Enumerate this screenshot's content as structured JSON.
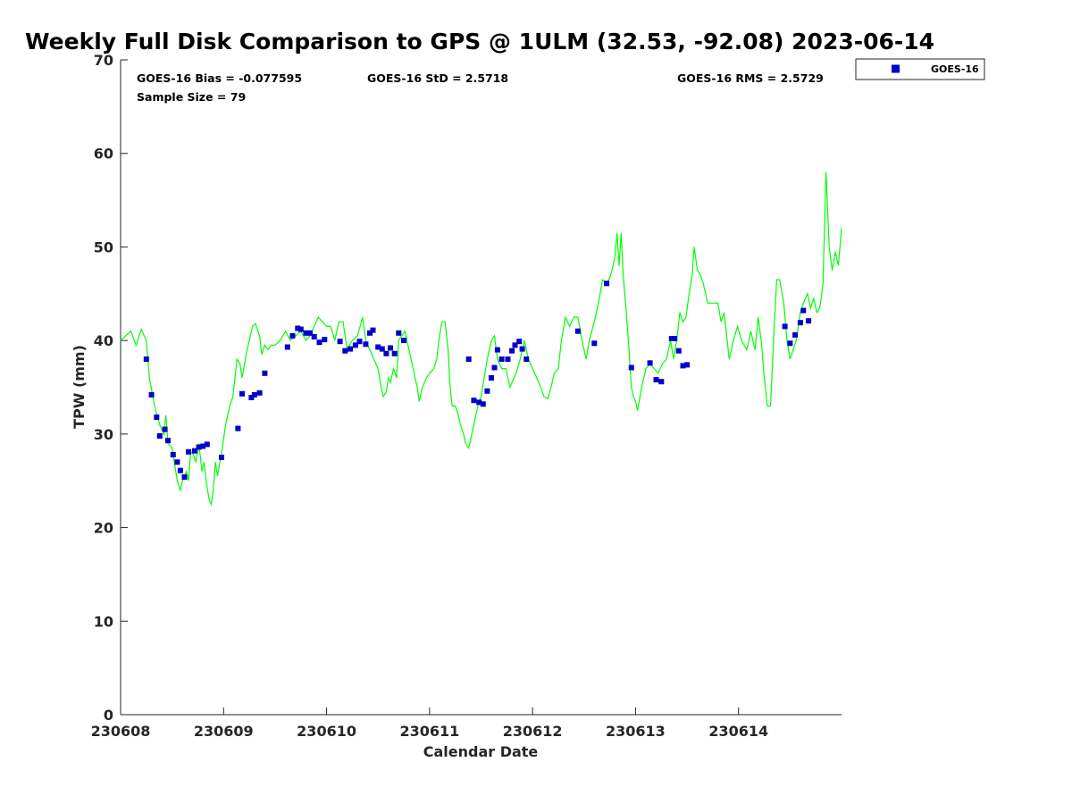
{
  "chart_data": {
    "type": "scatter",
    "title": "Weekly Full Disk Comparison to GPS @ 1ULM (32.53, -92.08) 2023-06-14",
    "xlabel": "Calendar Date",
    "ylabel": "TPW (mm)",
    "xlim": [
      0,
      7
    ],
    "ylim": [
      0,
      70
    ],
    "x_ticks": [
      0,
      1,
      2,
      3,
      4,
      5,
      6
    ],
    "x_tick_labels": [
      "230608",
      "230609",
      "230610",
      "230611",
      "230612",
      "230613",
      "230614"
    ],
    "y_ticks": [
      0,
      10,
      20,
      30,
      40,
      50,
      60,
      70
    ],
    "y_tick_labels": [
      "0",
      "10",
      "20",
      "30",
      "40",
      "50",
      "60",
      "70"
    ],
    "legend": {
      "position": "top-right",
      "entries": [
        "GOES-16"
      ]
    },
    "stats": {
      "bias": "GOES-16 Bias = -0.077595",
      "std": "GOES-16 StD = 2.5718",
      "rms": "GOES-16 RMS = 2.5729",
      "sample": "Sample Size = 79"
    },
    "series": [
      {
        "name": "GPS",
        "kind": "line",
        "color": "#00ff00",
        "points": [
          [
            0,
            40
          ],
          [
            0.1,
            41
          ],
          [
            0.15,
            39.5
          ],
          [
            0.2,
            41.2
          ],
          [
            0.25,
            40
          ],
          [
            0.28,
            36
          ],
          [
            0.33,
            33
          ],
          [
            0.38,
            31
          ],
          [
            0.42,
            30
          ],
          [
            0.44,
            32
          ],
          [
            0.46,
            29
          ],
          [
            0.5,
            28.5
          ],
          [
            0.55,
            25
          ],
          [
            0.58,
            24
          ],
          [
            0.6,
            25
          ],
          [
            0.64,
            26
          ],
          [
            0.66,
            25
          ],
          [
            0.68,
            28
          ],
          [
            0.7,
            28
          ],
          [
            0.73,
            27
          ],
          [
            0.76,
            29
          ],
          [
            0.79,
            26
          ],
          [
            0.81,
            27
          ],
          [
            0.83,
            25
          ],
          [
            0.86,
            23
          ],
          [
            0.88,
            22.5
          ],
          [
            0.9,
            24
          ],
          [
            0.92,
            27
          ],
          [
            0.94,
            25.5
          ],
          [
            0.98,
            28
          ],
          [
            1.02,
            31
          ],
          [
            1.06,
            33
          ],
          [
            1.09,
            34
          ],
          [
            1.11,
            36
          ],
          [
            1.13,
            38
          ],
          [
            1.16,
            37.5
          ],
          [
            1.18,
            36
          ],
          [
            1.22,
            38.5
          ],
          [
            1.25,
            40
          ],
          [
            1.28,
            41.5
          ],
          [
            1.31,
            41.8
          ],
          [
            1.35,
            40.5
          ],
          [
            1.37,
            38.5
          ],
          [
            1.4,
            39.5
          ],
          [
            1.43,
            39
          ],
          [
            1.46,
            39.5
          ],
          [
            1.5,
            39.5
          ],
          [
            1.55,
            40
          ],
          [
            1.6,
            41
          ],
          [
            1.65,
            40
          ],
          [
            1.7,
            40.5
          ],
          [
            1.75,
            41
          ],
          [
            1.8,
            40
          ],
          [
            1.84,
            40.5
          ],
          [
            1.88,
            41.5
          ],
          [
            1.92,
            42.5
          ],
          [
            1.96,
            42
          ],
          [
            2.0,
            41.5
          ],
          [
            2.04,
            41.5
          ],
          [
            2.08,
            40
          ],
          [
            2.12,
            42
          ],
          [
            2.16,
            42
          ],
          [
            2.2,
            39
          ],
          [
            2.25,
            40
          ],
          [
            2.3,
            40.5
          ],
          [
            2.35,
            42.5
          ],
          [
            2.38,
            40
          ],
          [
            2.42,
            39
          ],
          [
            2.46,
            38
          ],
          [
            2.5,
            37
          ],
          [
            2.53,
            35
          ],
          [
            2.55,
            34
          ],
          [
            2.58,
            34.5
          ],
          [
            2.6,
            36
          ],
          [
            2.62,
            35.5
          ],
          [
            2.65,
            37
          ],
          [
            2.68,
            36
          ],
          [
            2.7,
            40
          ],
          [
            2.73,
            40.5
          ],
          [
            2.76,
            41
          ],
          [
            2.8,
            39
          ],
          [
            2.84,
            37
          ],
          [
            2.88,
            35
          ],
          [
            2.9,
            33.5
          ],
          [
            2.93,
            35
          ],
          [
            2.97,
            36
          ],
          [
            3.0,
            36.5
          ],
          [
            3.04,
            37
          ],
          [
            3.07,
            38
          ],
          [
            3.09,
            40
          ],
          [
            3.12,
            42
          ],
          [
            3.15,
            42
          ],
          [
            3.18,
            39
          ],
          [
            3.2,
            35
          ],
          [
            3.22,
            33
          ],
          [
            3.25,
            33
          ],
          [
            3.28,
            32
          ],
          [
            3.3,
            31
          ],
          [
            3.33,
            30
          ],
          [
            3.35,
            29
          ],
          [
            3.38,
            28.5
          ],
          [
            3.41,
            30
          ],
          [
            3.44,
            31.5
          ],
          [
            3.47,
            33
          ],
          [
            3.5,
            34
          ],
          [
            3.53,
            36
          ],
          [
            3.56,
            38
          ],
          [
            3.6,
            40
          ],
          [
            3.63,
            40.5
          ],
          [
            3.66,
            38
          ],
          [
            3.7,
            37
          ],
          [
            3.74,
            37
          ],
          [
            3.78,
            35
          ],
          [
            3.8,
            35.5
          ],
          [
            3.84,
            36.5
          ],
          [
            3.88,
            38
          ],
          [
            3.92,
            40
          ],
          [
            3.96,
            38
          ],
          [
            4.0,
            37
          ],
          [
            4.04,
            36
          ],
          [
            4.08,
            35
          ],
          [
            4.11,
            34
          ],
          [
            4.15,
            33.8
          ],
          [
            4.18,
            35
          ],
          [
            4.21,
            36.5
          ],
          [
            4.25,
            37
          ],
          [
            4.28,
            40
          ],
          [
            4.32,
            42.5
          ],
          [
            4.36,
            41.5
          ],
          [
            4.4,
            42.5
          ],
          [
            4.44,
            42.5
          ],
          [
            4.48,
            40
          ],
          [
            4.52,
            38
          ],
          [
            4.55,
            40
          ],
          [
            4.6,
            42
          ],
          [
            4.64,
            44
          ],
          [
            4.68,
            46.5
          ],
          [
            4.72,
            46
          ],
          [
            4.76,
            47
          ],
          [
            4.8,
            49
          ],
          [
            4.82,
            51.5
          ],
          [
            4.84,
            48
          ],
          [
            4.86,
            51.5
          ],
          [
            4.88,
            47
          ],
          [
            4.91,
            43
          ],
          [
            4.93,
            40
          ],
          [
            4.96,
            35
          ],
          [
            4.98,
            34
          ],
          [
            5.0,
            33.5
          ],
          [
            5.02,
            32.5
          ],
          [
            5.06,
            35
          ],
          [
            5.1,
            37
          ],
          [
            5.14,
            37.5
          ],
          [
            5.18,
            37
          ],
          [
            5.22,
            36.5
          ],
          [
            5.26,
            37.5
          ],
          [
            5.3,
            38
          ],
          [
            5.34,
            40
          ],
          [
            5.37,
            38
          ],
          [
            5.4,
            40
          ],
          [
            5.43,
            43
          ],
          [
            5.46,
            42
          ],
          [
            5.49,
            42.5
          ],
          [
            5.52,
            45
          ],
          [
            5.55,
            47
          ],
          [
            5.57,
            50
          ],
          [
            5.6,
            47.5
          ],
          [
            5.63,
            47
          ],
          [
            5.66,
            46
          ],
          [
            5.7,
            44
          ],
          [
            5.75,
            44
          ],
          [
            5.8,
            44
          ],
          [
            5.83,
            42
          ],
          [
            5.86,
            43
          ],
          [
            5.88,
            41
          ],
          [
            5.91,
            38
          ],
          [
            5.95,
            40
          ],
          [
            5.99,
            41.5
          ],
          [
            6.03,
            40
          ],
          [
            6.08,
            39
          ],
          [
            6.12,
            41
          ],
          [
            6.16,
            39
          ],
          [
            6.19,
            42.5
          ],
          [
            6.22,
            40
          ],
          [
            6.25,
            36
          ],
          [
            6.28,
            33
          ],
          [
            6.31,
            33
          ],
          [
            6.34,
            40
          ],
          [
            6.37,
            46.5
          ],
          [
            6.4,
            46.5
          ],
          [
            6.44,
            44
          ],
          [
            6.47,
            40
          ],
          [
            6.5,
            38
          ],
          [
            6.53,
            39
          ],
          [
            6.56,
            40
          ],
          [
            6.6,
            43
          ],
          [
            6.63,
            44
          ],
          [
            6.67,
            45
          ],
          [
            6.7,
            43.5
          ],
          [
            6.73,
            44.5
          ],
          [
            6.76,
            43
          ],
          [
            6.79,
            43.5
          ],
          [
            6.82,
            46
          ],
          [
            6.85,
            58
          ],
          [
            6.88,
            50
          ],
          [
            6.91,
            47.5
          ],
          [
            6.94,
            49.5
          ],
          [
            6.97,
            48
          ],
          [
            7.0,
            52
          ]
        ]
      },
      {
        "name": "GOES-16",
        "kind": "scatter",
        "color": "#0000cc",
        "points": [
          [
            0.25,
            38
          ],
          [
            0.3,
            34.2
          ],
          [
            0.35,
            31.8
          ],
          [
            0.38,
            29.8
          ],
          [
            0.43,
            30.5
          ],
          [
            0.46,
            29.3
          ],
          [
            0.51,
            27.8
          ],
          [
            0.55,
            27
          ],
          [
            0.58,
            26.1
          ],
          [
            0.62,
            25.4
          ],
          [
            0.66,
            28.1
          ],
          [
            0.72,
            28.2
          ],
          [
            0.76,
            28.6
          ],
          [
            0.8,
            28.7
          ],
          [
            0.84,
            28.9
          ],
          [
            0.98,
            27.5
          ],
          [
            1.14,
            30.6
          ],
          [
            1.18,
            34.3
          ],
          [
            1.27,
            33.9
          ],
          [
            1.3,
            34.2
          ],
          [
            1.35,
            34.4
          ],
          [
            1.4,
            36.5
          ],
          [
            1.62,
            39.3
          ],
          [
            1.67,
            40.5
          ],
          [
            1.72,
            41.3
          ],
          [
            1.75,
            41.2
          ],
          [
            1.8,
            40.8
          ],
          [
            1.84,
            40.8
          ],
          [
            1.88,
            40.4
          ],
          [
            1.93,
            39.8
          ],
          [
            1.98,
            40.1
          ],
          [
            2.13,
            39.9
          ],
          [
            2.18,
            38.9
          ],
          [
            2.23,
            39.1
          ],
          [
            2.28,
            39.5
          ],
          [
            2.32,
            39.9
          ],
          [
            2.38,
            39.6
          ],
          [
            2.42,
            40.8
          ],
          [
            2.45,
            41.1
          ],
          [
            2.5,
            39.3
          ],
          [
            2.54,
            39.1
          ],
          [
            2.58,
            38.6
          ],
          [
            2.62,
            39.2
          ],
          [
            2.66,
            38.6
          ],
          [
            2.7,
            40.8
          ],
          [
            2.75,
            40
          ],
          [
            3.38,
            38
          ],
          [
            3.43,
            33.6
          ],
          [
            3.48,
            33.4
          ],
          [
            3.52,
            33.2
          ],
          [
            3.56,
            34.6
          ],
          [
            3.6,
            36
          ],
          [
            3.63,
            37.1
          ],
          [
            3.66,
            39
          ],
          [
            3.7,
            38
          ],
          [
            3.76,
            38
          ],
          [
            3.8,
            38.9
          ],
          [
            3.83,
            39.5
          ],
          [
            3.87,
            39.9
          ],
          [
            3.9,
            39.1
          ],
          [
            3.94,
            38
          ],
          [
            4.44,
            41
          ],
          [
            4.6,
            39.7
          ],
          [
            4.72,
            46.1
          ],
          [
            4.96,
            37.1
          ],
          [
            5.14,
            37.6
          ],
          [
            5.2,
            35.8
          ],
          [
            5.25,
            35.6
          ],
          [
            5.35,
            40.2
          ],
          [
            5.38,
            40.2
          ],
          [
            5.42,
            38.9
          ],
          [
            5.46,
            37.3
          ],
          [
            5.5,
            37.4
          ],
          [
            6.45,
            41.5
          ],
          [
            6.5,
            39.7
          ],
          [
            6.55,
            40.6
          ],
          [
            6.6,
            41.9
          ],
          [
            6.63,
            43.2
          ],
          [
            6.68,
            42.1
          ]
        ]
      }
    ]
  }
}
